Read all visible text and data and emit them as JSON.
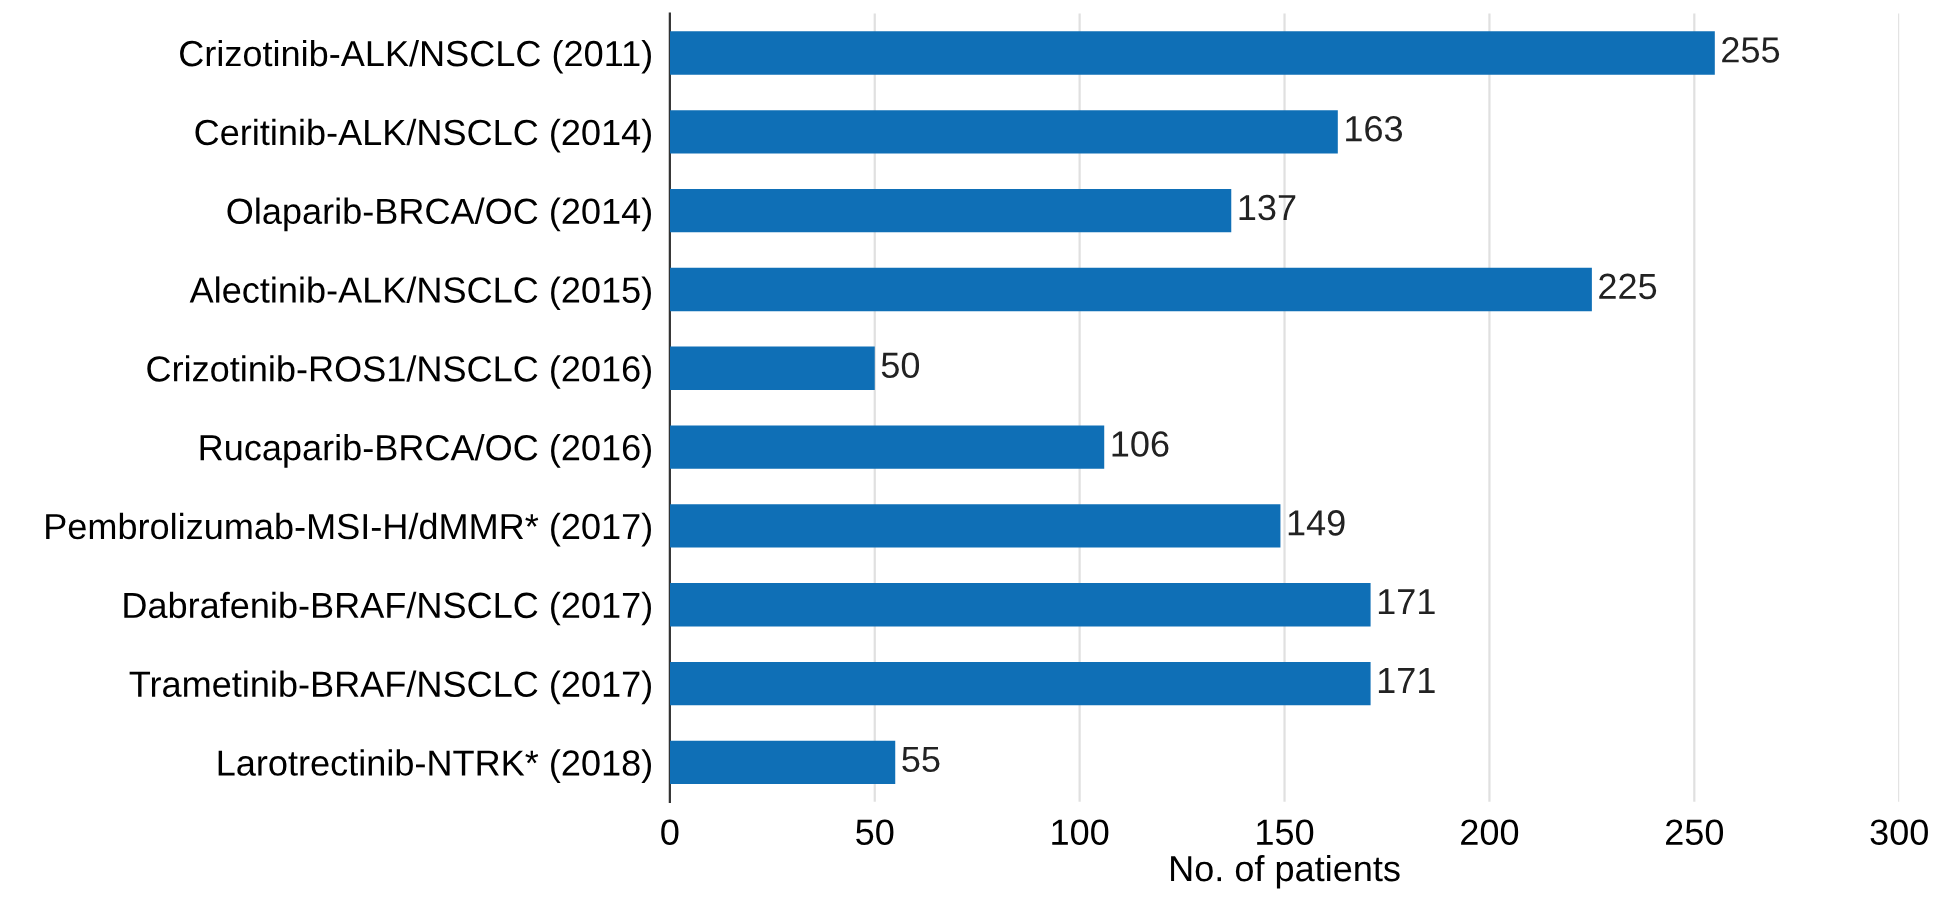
{
  "chart_data": {
    "type": "bar",
    "orientation": "horizontal",
    "xlabel": "No. of patients",
    "categories": [
      "Crizotinib-ALK/NSCLC (2011)",
      "Ceritinib-ALK/NSCLC (2014)",
      "Olaparib-BRCA/OC (2014)",
      "Alectinib-ALK/NSCLC (2015)",
      "Crizotinib-ROS1/NSCLC (2016)",
      "Rucaparib-BRCA/OC (2016)",
      "Pembrolizumab-MSI-H/dMMR* (2017)",
      "Dabrafenib-BRAF/NSCLC (2017)",
      "Trametinib-BRAF/NSCLC (2017)",
      "Larotrectinib-NTRK* (2018)"
    ],
    "values": [
      255,
      163,
      137,
      225,
      50,
      106,
      149,
      171,
      171,
      55
    ],
    "color": "#0f6fb6",
    "xlim": [
      0,
      300
    ],
    "xticks": [
      0,
      50,
      100,
      150,
      200,
      250,
      300
    ],
    "grid": "x",
    "data_labels": true
  }
}
